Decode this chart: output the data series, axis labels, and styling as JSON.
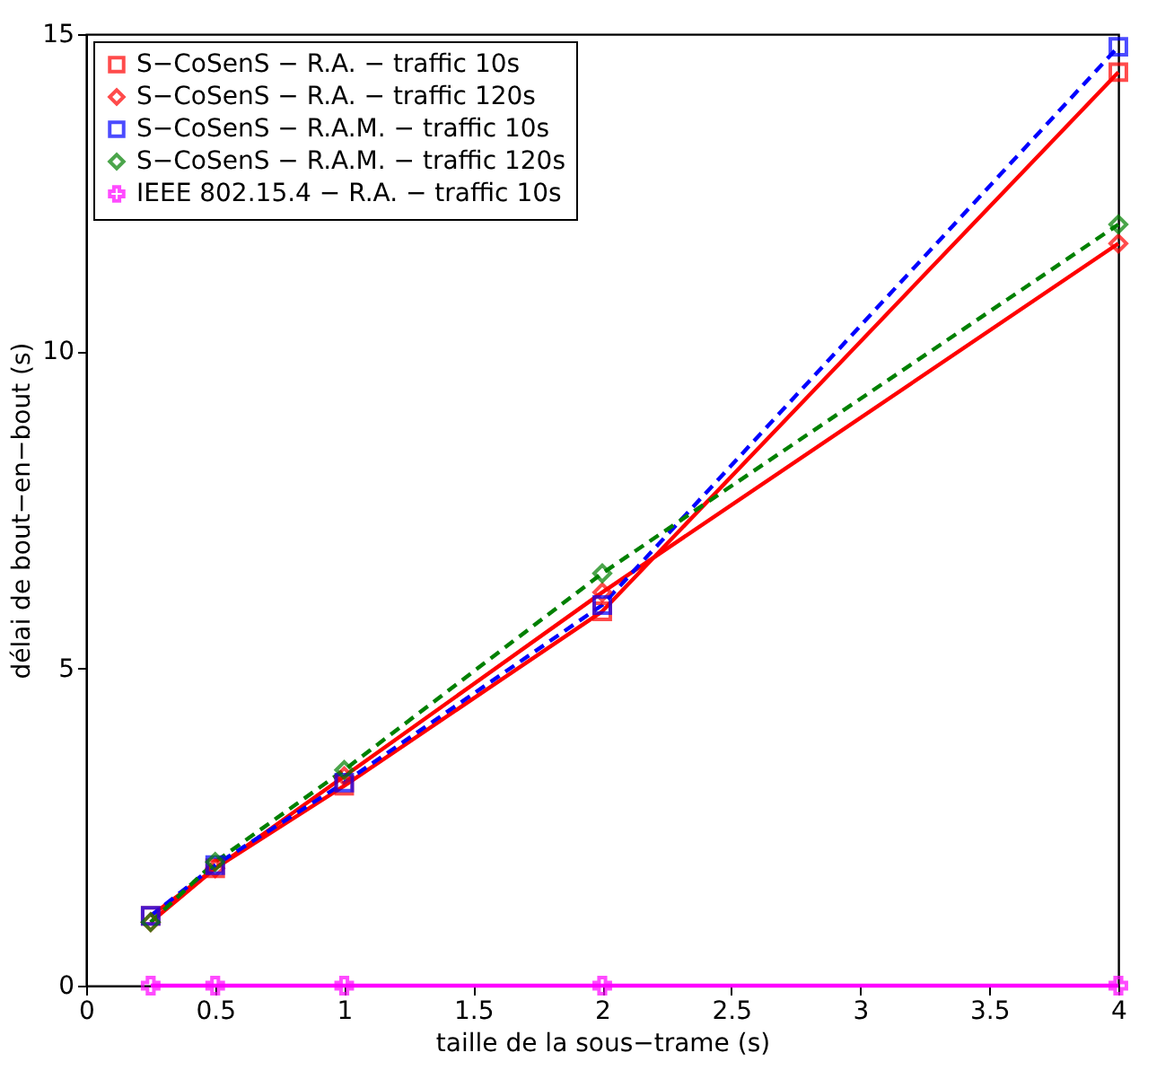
{
  "chart_data": {
    "type": "line",
    "xlabel": "taille de la sous−trame (s)",
    "ylabel": "délai de bout−en−bout (s)",
    "x": [
      0.25,
      0.5,
      1,
      2,
      4
    ],
    "xlim": [
      0,
      4
    ],
    "xticks": [
      0,
      0.5,
      1,
      1.5,
      2,
      2.5,
      3,
      3.5,
      4
    ],
    "ylim": [
      0,
      15
    ],
    "yticks": [
      0,
      5,
      10,
      15
    ],
    "legend": "top left",
    "series": [
      {
        "name": "S−CoSenS − R.A. − traffic 10s",
        "color": "#ff0000",
        "marker": "square",
        "line_style": "solid",
        "values": [
          1.1,
          1.85,
          3.15,
          5.9,
          14.4
        ]
      },
      {
        "name": "S−CoSenS − R.A. − traffic 120s",
        "color": "#ff0000",
        "marker": "diamond",
        "line_style": "solid",
        "values": [
          1.0,
          1.85,
          3.3,
          6.2,
          11.7
        ]
      },
      {
        "name": "S−CoSenS − R.A.M. − traffic 10s",
        "color": "#0000ff",
        "marker": "square",
        "line_style": "dashed",
        "values": [
          1.1,
          1.9,
          3.2,
          6.0,
          14.8
        ]
      },
      {
        "name": "S−CoSenS − R.A.M. − traffic 120s",
        "color": "#008000",
        "marker": "diamond",
        "line_style": "dashed",
        "values": [
          1.0,
          1.95,
          3.4,
          6.5,
          12.0
        ]
      },
      {
        "name": "IEEE 802.15.4 − R.A. − traffic 10s",
        "color": "#ff00ff",
        "marker": "cross",
        "line_style": "solid",
        "values": [
          0,
          0,
          0,
          0,
          0
        ]
      }
    ]
  }
}
